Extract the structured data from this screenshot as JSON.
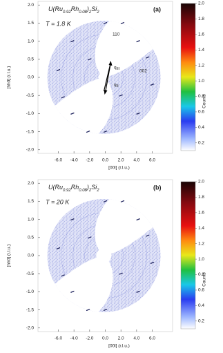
{
  "panels": [
    {
      "label": "(a)",
      "formula": [
        "U(Ru",
        "0.92",
        "Rh",
        "0.08",
        ")",
        "2",
        "Si",
        "2"
      ],
      "temperature": "T = 1.8 K",
      "annotations": [
        {
          "text": "110"
        },
        {
          "text": "002"
        },
        {
          "text": "q",
          "sub": "III"
        },
        {
          "text": "q",
          "sub": "II"
        }
      ],
      "xlabel": "[00l] (r.l.u.)",
      "ylabel": "[hh0] (r.l.u.)",
      "xlim": [
        -8.6,
        8.6
      ],
      "ylim": [
        -2.1,
        2.1
      ],
      "xticks": [
        {
          "value": -6,
          "label": "-6.0"
        },
        {
          "value": -4,
          "label": "-4.0"
        },
        {
          "value": -2,
          "label": "-2.0"
        },
        {
          "value": 0,
          "label": "0.0"
        },
        {
          "value": 2,
          "label": "2.0"
        },
        {
          "value": 4,
          "label": "4.0"
        },
        {
          "value": 6,
          "label": "6.0"
        }
      ],
      "yticks": [
        {
          "value": -2,
          "label": "-2.0"
        },
        {
          "value": -1.5,
          "label": "-1.5"
        },
        {
          "value": -1,
          "label": "-1.0"
        },
        {
          "value": -0.5,
          "label": "-0.5"
        },
        {
          "value": 0,
          "label": "0.0"
        },
        {
          "value": 0.5,
          "label": "0.5"
        },
        {
          "value": 1,
          "label": "1.0"
        },
        {
          "value": 1.5,
          "label": "1.5"
        },
        {
          "value": 2,
          "label": "2.0"
        }
      ],
      "colorbar": {
        "label": "Counts",
        "clim": [
          0.1,
          2.0
        ],
        "ticks": [
          0.2,
          0.4,
          0.6,
          0.8,
          {
            "value": 1,
            "label": "1.0"
          },
          1.2,
          1.4,
          1.6,
          1.8,
          {
            "value": 2,
            "label": "2.0"
          }
        ]
      }
    },
    {
      "label": "(b)",
      "formula": [
        "U(Ru",
        "0.92",
        "Rh",
        "0.08",
        ")",
        "2",
        "Si",
        "2"
      ],
      "temperature": "T = 20 K",
      "xlabel": "[00l] (r.l.u.)",
      "ylabel": "[hh0] (r.l.u.)",
      "xlim": [
        -8.6,
        8.6
      ],
      "ylim": [
        -2.1,
        2.1
      ],
      "xticks": [
        {
          "value": -6,
          "label": "-6.0"
        },
        {
          "value": -4,
          "label": "-4.0"
        },
        {
          "value": -2,
          "label": "-2.0"
        },
        {
          "value": 0,
          "label": "0.0"
        },
        {
          "value": 2,
          "label": "2.0"
        },
        {
          "value": 4,
          "label": "4.0"
        },
        {
          "value": 6,
          "label": "6.0"
        }
      ],
      "yticks": [
        {
          "value": -2,
          "label": "-2.0"
        },
        {
          "value": -1.5,
          "label": "-1.5"
        },
        {
          "value": -1,
          "label": "-1.0"
        },
        {
          "value": -0.5,
          "label": "-0.5"
        },
        {
          "value": 0,
          "label": "0.0"
        },
        {
          "value": 0.5,
          "label": "0.5"
        },
        {
          "value": 1,
          "label": "1.0"
        },
        {
          "value": 1.5,
          "label": "1.5"
        },
        {
          "value": 2,
          "label": "2.0"
        }
      ],
      "colorbar": {
        "label": "Counts",
        "clim": [
          0.1,
          2.0
        ],
        "ticks": [
          0.2,
          0.4,
          0.6,
          0.8,
          {
            "value": 1,
            "label": "1.0"
          },
          1.2,
          1.4,
          1.6,
          1.8,
          {
            "value": 2,
            "label": "2.0"
          }
        ]
      }
    }
  ]
}
